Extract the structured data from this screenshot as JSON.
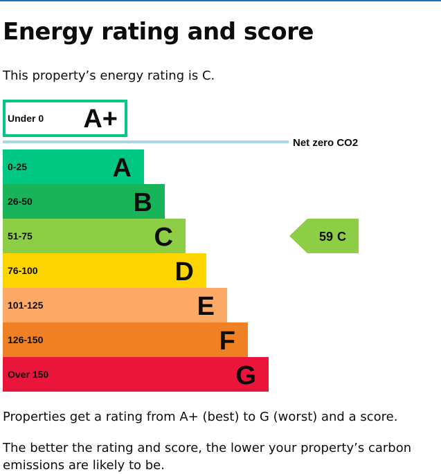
{
  "page": {
    "title": "Energy rating and score",
    "intro": "This property’s energy rating is C.",
    "scale_text": "Properties get a rating from A+ (best) to G (worst) and a score.",
    "carbon_text": "The better the rating and score, the lower your property’s carbon emissions are likely to be."
  },
  "chart_data": {
    "type": "bar",
    "title": "Energy rating and score",
    "categories": [
      "A+",
      "A",
      "B",
      "C",
      "D",
      "E",
      "F",
      "G"
    ],
    "series": [
      {
        "name": "Score range",
        "values": [
          "Under 0",
          "0-25",
          "26-50",
          "51-75",
          "76-100",
          "101-125",
          "126-150",
          "Over 150"
        ]
      }
    ],
    "bands": [
      {
        "letter": "A+",
        "range": "Under 0",
        "color": "#ffffff",
        "border": "#00c781"
      },
      {
        "letter": "A",
        "range": "0-25",
        "color": "#00c781"
      },
      {
        "letter": "B",
        "range": "26-50",
        "color": "#19b459"
      },
      {
        "letter": "C",
        "range": "51-75",
        "color": "#8dce46"
      },
      {
        "letter": "D",
        "range": "76-100",
        "color": "#ffd500"
      },
      {
        "letter": "E",
        "range": "101-125",
        "color": "#fcaa65"
      },
      {
        "letter": "F",
        "range": "126-150",
        "color": "#ef8023"
      },
      {
        "letter": "G",
        "range": "Over 150",
        "color": "#e9153b"
      }
    ],
    "net_zero_label": "Net zero CO2",
    "net_zero_line_color": "#a8d7e0",
    "current": {
      "score": "59",
      "rating": "C",
      "band_index": 3,
      "color": "#8dce46"
    }
  }
}
